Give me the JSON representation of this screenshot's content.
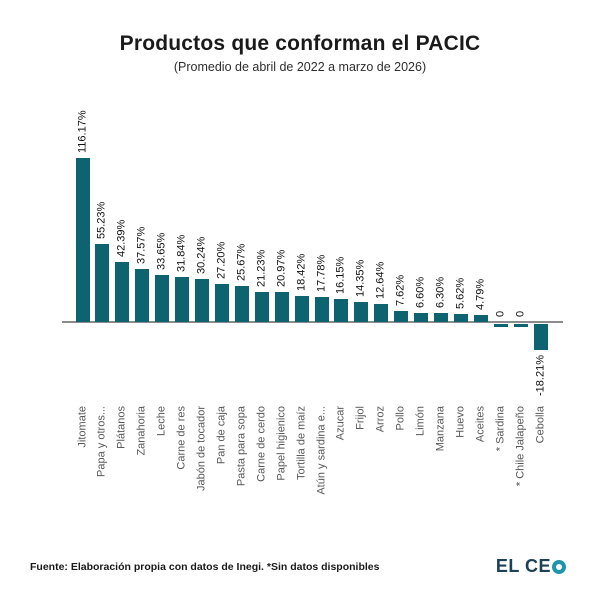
{
  "title": "Productos que conforman el PACIC",
  "subtitle": "(Promedio de abril de 2022 a marzo de 2026)",
  "footer": {
    "source": "Fuente: Elaboración propia con datos de Inegi. *Sin datos disponibles",
    "logo": "EL CEO",
    "logo_prefix": "EL CE"
  },
  "colors": {
    "bar": "#0d6470",
    "axis": "#8c8c8c",
    "value_label": "#111111",
    "category_label": "#595959",
    "logo_dark": "#1d4156",
    "logo_accent": "#1f95ab"
  },
  "chart_data": {
    "type": "bar",
    "title": "Productos que conforman el PACIC",
    "subtitle": "(Promedio de abril de 2022 a marzo de 2026)",
    "categories": [
      "Jitomate",
      "Papa y otros...",
      "Plátanos",
      "Zanahoria",
      "Leche",
      "Carne de res",
      "Jabón de tocador",
      "Pan de caja",
      "Pasta para sopa",
      "Carne de cerdo",
      "Papel higienico",
      "Tortilla de maíz",
      "Atún y sardina e...",
      "Azucar",
      "Frijol",
      "Arroz",
      "Pollo",
      "Limón",
      "Manzana",
      "Huevo",
      "Aceites",
      "* Sardina",
      "* Chile Jalapeño",
      "Cebolla"
    ],
    "values": [
      116.17,
      55.23,
      42.39,
      37.57,
      33.65,
      31.84,
      30.24,
      27.2,
      25.67,
      21.23,
      20.97,
      18.42,
      17.78,
      16.15,
      14.35,
      12.64,
      7.62,
      6.6,
      6.3,
      5.62,
      4.79,
      0,
      0,
      -18.21
    ],
    "value_labels": [
      "116.17%",
      "55.23%",
      "42.39%",
      "37.57%",
      "33.65%",
      "31.84%",
      "30.24%",
      "27.20%",
      "25.67%",
      "21.23%",
      "20.97%",
      "18.42%",
      "17.78%",
      "16.15%",
      "14.35%",
      "12.64%",
      "7.62%",
      "6.60%",
      "6.30%",
      "5.62%",
      "4.79%",
      "0",
      "0",
      "-18.21%"
    ],
    "ylim": [
      -25,
      125
    ],
    "grid": false,
    "legend": null,
    "bar_color": "#0d6470",
    "footnote": "*Sin datos disponibles"
  }
}
